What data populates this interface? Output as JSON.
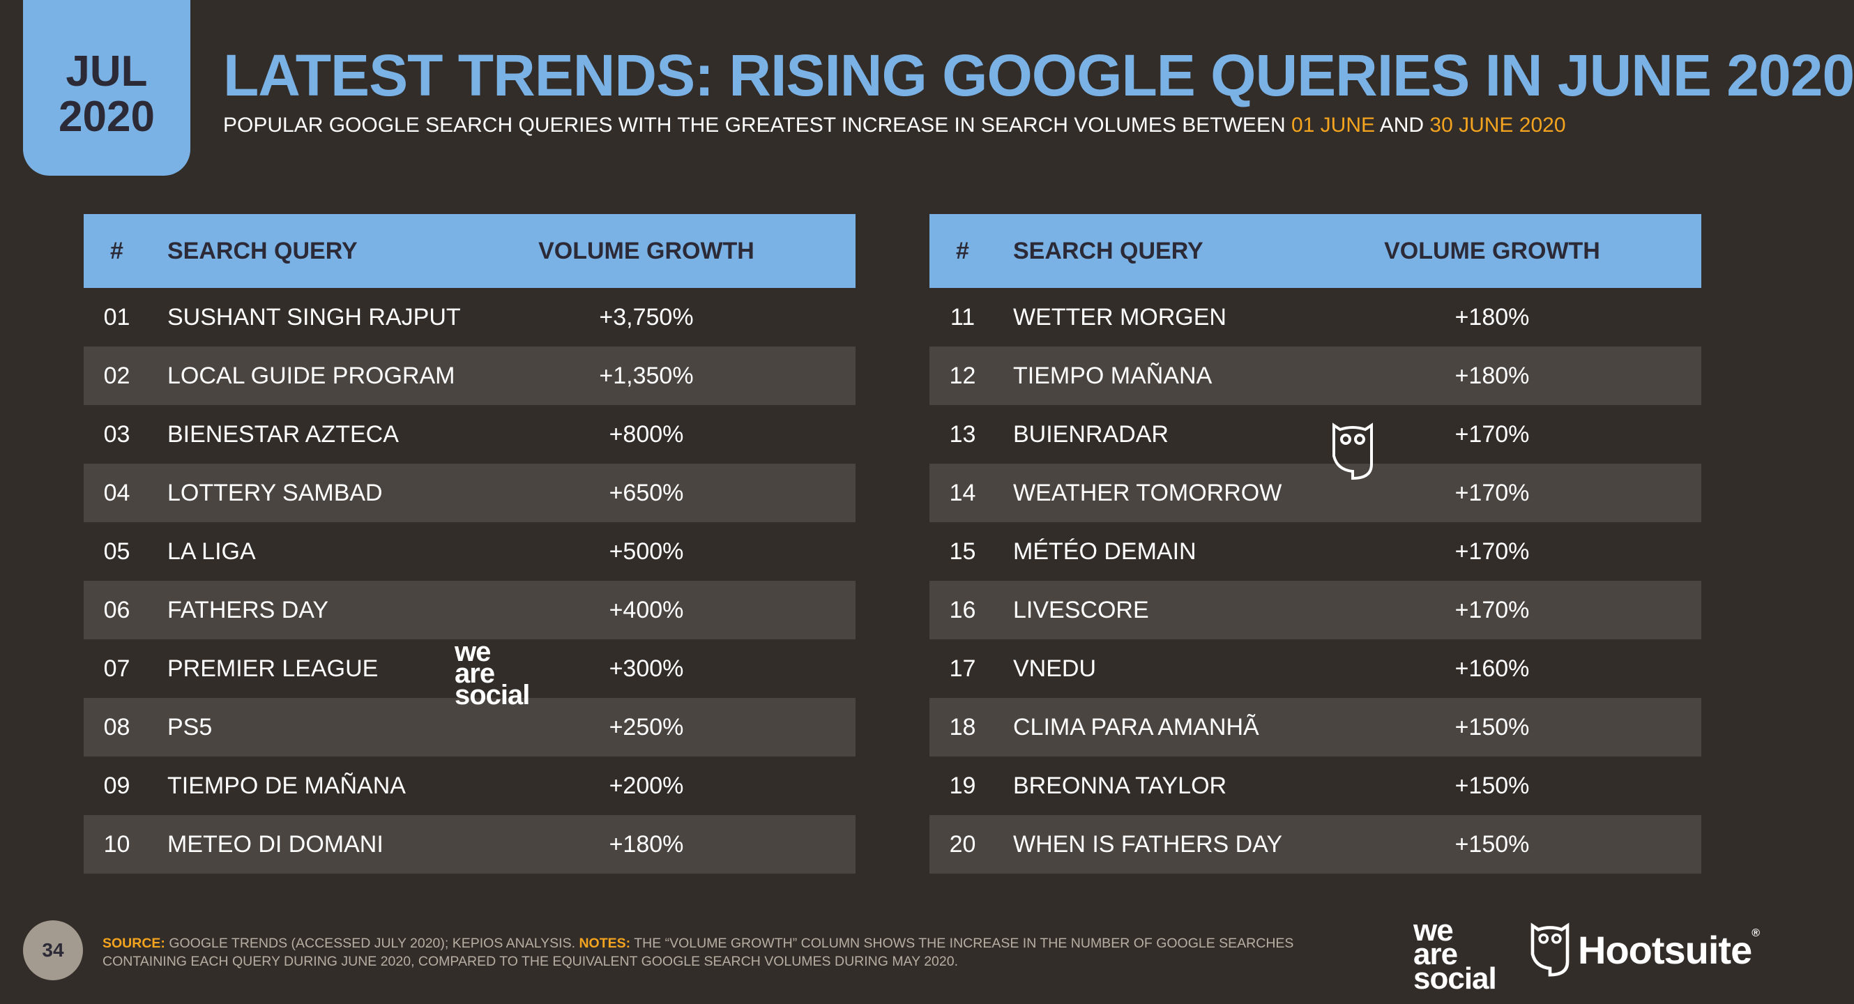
{
  "date_tab": {
    "month": "JUL",
    "year": "2020"
  },
  "header": {
    "title": "LATEST TRENDS: RISING GOOGLE QUERIES IN JUNE 2020",
    "subtitle_prefix": "POPULAR GOOGLE SEARCH QUERIES WITH THE GREATEST INCREASE IN SEARCH VOLUMES BETWEEN",
    "subtitle_start": "01 JUNE",
    "subtitle_and": "AND",
    "subtitle_end": "30 JUNE 2020"
  },
  "table_headers": {
    "num": "#",
    "query": "SEARCH QUERY",
    "growth": "VOLUME GROWTH"
  },
  "left_rows": [
    {
      "num": "01",
      "query": "SUSHANT SINGH RAJPUT",
      "growth": "+3,750%"
    },
    {
      "num": "02",
      "query": "LOCAL GUIDE PROGRAM",
      "growth": "+1,350%"
    },
    {
      "num": "03",
      "query": "BIENESTAR AZTECA",
      "growth": "+800%"
    },
    {
      "num": "04",
      "query": "LOTTERY SAMBAD",
      "growth": "+650%"
    },
    {
      "num": "05",
      "query": "LA LIGA",
      "growth": "+500%"
    },
    {
      "num": "06",
      "query": "FATHERS DAY",
      "growth": "+400%"
    },
    {
      "num": "07",
      "query": "PREMIER LEAGUE",
      "growth": "+300%"
    },
    {
      "num": "08",
      "query": "PS5",
      "growth": "+250%"
    },
    {
      "num": "09",
      "query": "TIEMPO DE MAÑANA",
      "growth": "+200%"
    },
    {
      "num": "10",
      "query": "METEO DI DOMANI",
      "growth": "+180%"
    }
  ],
  "right_rows": [
    {
      "num": "11",
      "query": "WETTER MORGEN",
      "growth": "+180%"
    },
    {
      "num": "12",
      "query": "TIEMPO MAÑANA",
      "growth": "+180%"
    },
    {
      "num": "13",
      "query": "BUIENRADAR",
      "growth": "+170%"
    },
    {
      "num": "14",
      "query": "WEATHER TOMORROW",
      "growth": "+170%"
    },
    {
      "num": "15",
      "query": "MÉTÉO DEMAIN",
      "growth": "+170%"
    },
    {
      "num": "16",
      "query": "LIVESCORE",
      "growth": "+170%"
    },
    {
      "num": "17",
      "query": "VNEDU",
      "growth": "+160%"
    },
    {
      "num": "18",
      "query": "CLIMA PARA AMANHÃ",
      "growth": "+150%"
    },
    {
      "num": "19",
      "query": "BREONNA TAYLOR",
      "growth": "+150%"
    },
    {
      "num": "20",
      "query": "WHEN IS FATHERS DAY",
      "growth": "+150%"
    }
  ],
  "watermark": {
    "line1": "we",
    "line2": "are",
    "line3": "social"
  },
  "footer": {
    "page_number": "34",
    "source_label": "SOURCE:",
    "source_text": "GOOGLE TRENDS (ACCESSED JULY 2020); KEPIOS ANALYSIS.",
    "notes_label": "NOTES:",
    "notes_text": "THE “VOLUME GROWTH” COLUMN SHOWS THE INCREASE IN THE NUMBER OF GOOGLE SEARCHES CONTAINING EACH QUERY DURING JUNE 2020, COMPARED TO THE EQUIVALENT GOOGLE SEARCH VOLUMES DURING MAY 2020.",
    "was_logo": {
      "line1": "we",
      "line2": "are",
      "line3": "social"
    },
    "hootsuite_logo": "Hootsuite",
    "hootsuite_reg": "®"
  }
}
